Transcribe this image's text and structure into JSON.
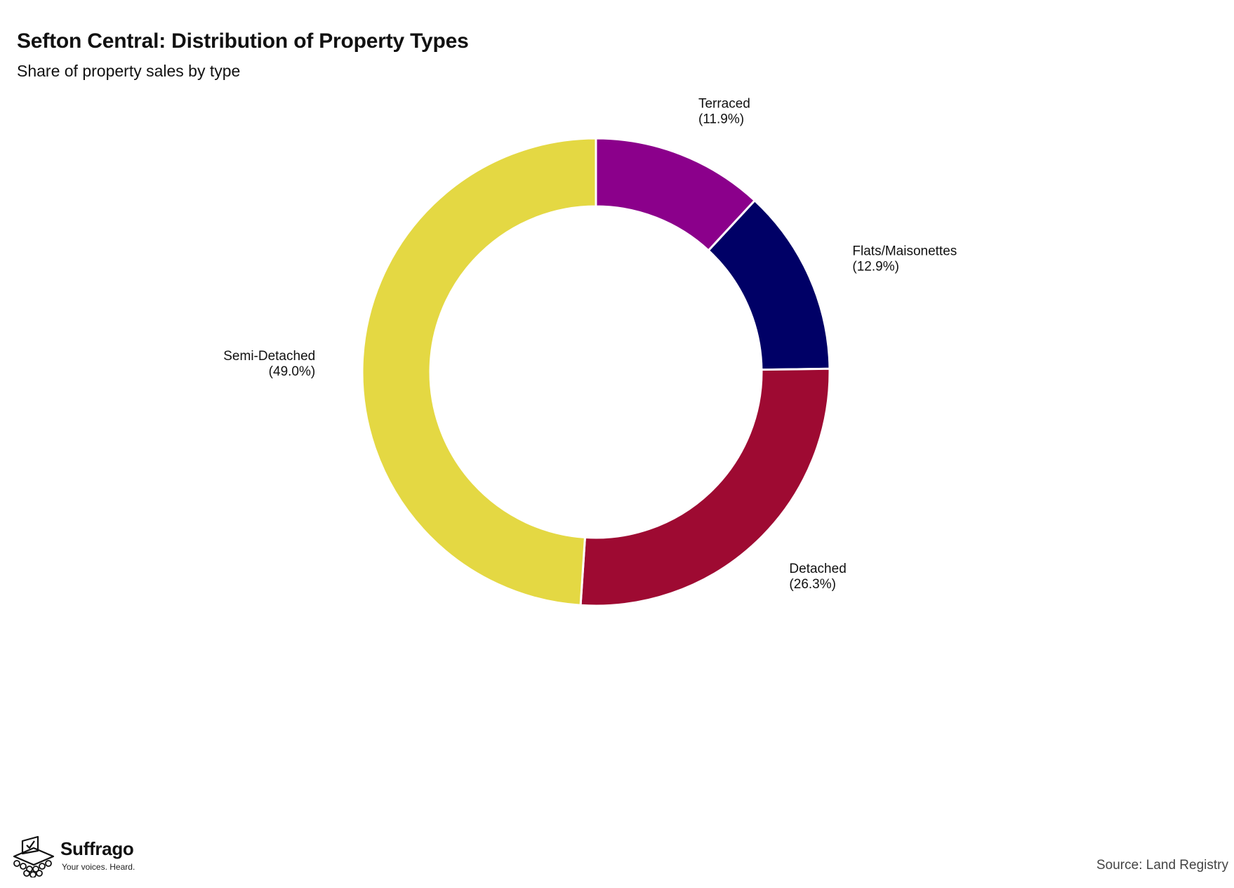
{
  "title": "Sefton Central: Distribution of Property Types",
  "subtitle": "Share of property sales by type",
  "chart_data": {
    "type": "pie",
    "style": "donut",
    "title": "Sefton Central: Distribution of Property Types",
    "subtitle": "Share of property sales by type",
    "start": "top",
    "direction": "clockwise",
    "slices": [
      {
        "name": "Terraced",
        "value": 11.9,
        "label_value": "(11.9%)",
        "color": "#8B008B"
      },
      {
        "name": "Flats/Maisonettes",
        "value": 12.9,
        "label_value": "(12.9%)",
        "color": "#000066"
      },
      {
        "name": "Detached",
        "value": 26.3,
        "label_value": "(26.3%)",
        "color": "#9E0A32"
      },
      {
        "name": "Semi-Detached",
        "value": 49.0,
        "label_value": "(49.0%)",
        "color": "#E4D843"
      }
    ],
    "legend": "none",
    "labels": "outside"
  },
  "branding": {
    "name": "Suffrago",
    "tagline": "Your voices. Heard."
  },
  "source": "Source: Land Registry"
}
